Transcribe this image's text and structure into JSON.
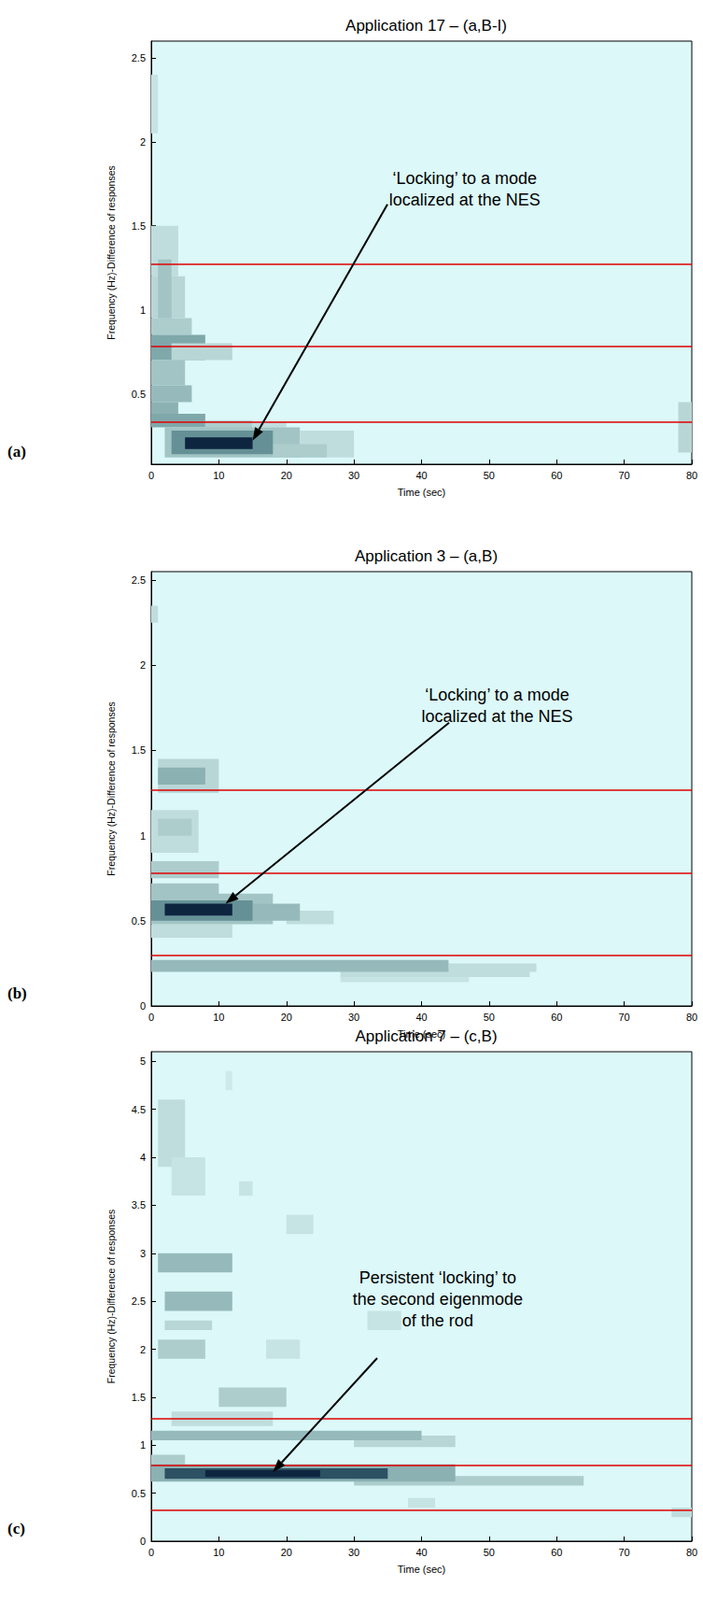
{
  "chart_data": [
    {
      "type": "heatmap",
      "title": "Application 17 – (a,B-I)",
      "panel": "(a)",
      "x_label": "Time (sec)",
      "y_label": "Frequency (Hz)-Difference of responses",
      "xlim": [
        0,
        80
      ],
      "xticks": [
        0,
        10,
        20,
        30,
        40,
        50,
        60,
        70,
        80
      ],
      "ylim": [
        0.08,
        2.6
      ],
      "yticks": [
        0.5,
        1,
        1.5,
        2,
        2.5
      ],
      "grid": false,
      "clim": [
        0,
        1
      ],
      "colorscale": [
        "#dcf8f8",
        "#b9d6d6",
        "#7fa8aa",
        "#3f6f78",
        "#0e2540"
      ],
      "cells": [
        [
          0,
          1,
          2.05,
          2.4,
          0.15
        ],
        [
          0,
          4,
          1.2,
          1.5,
          0.2
        ],
        [
          0,
          5,
          0.95,
          1.2,
          0.25
        ],
        [
          1,
          3,
          0.9,
          1.3,
          0.35
        ],
        [
          0,
          6,
          0.85,
          0.95,
          0.3
        ],
        [
          0,
          8,
          0.7,
          0.85,
          0.5
        ],
        [
          3,
          12,
          0.7,
          0.8,
          0.25
        ],
        [
          0,
          5,
          0.55,
          0.7,
          0.35
        ],
        [
          0,
          6,
          0.45,
          0.55,
          0.4
        ],
        [
          0,
          4,
          0.38,
          0.45,
          0.45
        ],
        [
          0,
          8,
          0.3,
          0.38,
          0.5
        ],
        [
          8,
          15,
          0.28,
          0.34,
          0.3
        ],
        [
          15,
          20,
          0.3,
          0.33,
          0.2
        ],
        [
          2,
          22,
          0.12,
          0.3,
          0.35
        ],
        [
          22,
          30,
          0.12,
          0.28,
          0.2
        ],
        [
          18,
          26,
          0.12,
          0.2,
          0.3
        ],
        [
          3,
          18,
          0.14,
          0.28,
          0.6
        ],
        [
          5,
          15,
          0.17,
          0.24,
          1.0
        ],
        [
          78,
          80,
          0.15,
          0.45,
          0.25
        ]
      ],
      "reference_lines": {
        "values": [
          0.33,
          0.78,
          1.27
        ],
        "color": "#e00000"
      },
      "annotations": [
        {
          "text": [
            "‘Locking’ to a mode",
            "localized at the NES"
          ],
          "x": 15,
          "y": 0.22
        }
      ]
    },
    {
      "type": "heatmap",
      "title": "Application 3 – (a,B)",
      "panel": "(b)",
      "x_label": "Time (sec)",
      "y_label": "Frequency (Hz)-Difference of responses",
      "xlim": [
        0,
        80
      ],
      "xticks": [
        0,
        10,
        20,
        30,
        40,
        50,
        60,
        70,
        80
      ],
      "ylim": [
        0,
        2.55
      ],
      "yticks": [
        0,
        0.5,
        1,
        1.5,
        2,
        2.5
      ],
      "grid": false,
      "clim": [
        0,
        1
      ],
      "colorscale": [
        "#dcf8f8",
        "#b9d6d6",
        "#7fa8aa",
        "#3f6f78",
        "#0e2540"
      ],
      "cells": [
        [
          0,
          1,
          2.25,
          2.35,
          0.2
        ],
        [
          1,
          10,
          1.25,
          1.45,
          0.25
        ],
        [
          1,
          8,
          1.3,
          1.4,
          0.45
        ],
        [
          0,
          7,
          0.9,
          1.15,
          0.2
        ],
        [
          1,
          6,
          1.0,
          1.1,
          0.3
        ],
        [
          0,
          10,
          0.75,
          0.85,
          0.3
        ],
        [
          0,
          10,
          0.62,
          0.72,
          0.35
        ],
        [
          0,
          12,
          0.4,
          0.48,
          0.2
        ],
        [
          0,
          18,
          0.48,
          0.66,
          0.35
        ],
        [
          20,
          27,
          0.48,
          0.56,
          0.2
        ],
        [
          12,
          22,
          0.5,
          0.6,
          0.4
        ],
        [
          0,
          15,
          0.5,
          0.62,
          0.6
        ],
        [
          2,
          12,
          0.53,
          0.6,
          1.0
        ],
        [
          28,
          47,
          0.14,
          0.18,
          0.15
        ],
        [
          28,
          56,
          0.17,
          0.22,
          0.2
        ],
        [
          44,
          57,
          0.2,
          0.25,
          0.2
        ],
        [
          0,
          44,
          0.2,
          0.27,
          0.4
        ]
      ],
      "reference_lines": {
        "values": [
          0.3,
          0.78,
          1.27
        ],
        "color": "#e00000"
      },
      "annotations": [
        {
          "text": [
            "‘Locking’ to a mode",
            "localized at the NES"
          ],
          "x": 11,
          "y": 0.6
        }
      ]
    },
    {
      "type": "heatmap",
      "title": "Application 7 – (c,B)",
      "panel": "(c)",
      "x_label": "Time (sec)",
      "y_label": "Frequency (Hz)-Difference of responses",
      "xlim": [
        0,
        80
      ],
      "xticks": [
        0,
        10,
        20,
        30,
        40,
        50,
        60,
        70,
        80
      ],
      "ylim": [
        0,
        5.1
      ],
      "yticks": [
        0,
        0.5,
        1,
        1.5,
        2,
        2.5,
        3,
        3.5,
        4,
        4.5,
        5
      ],
      "grid": false,
      "clim": [
        0,
        1
      ],
      "colorscale": [
        "#dcf8f8",
        "#b9d6d6",
        "#7fa8aa",
        "#3f6f78",
        "#0e2540"
      ],
      "cells": [
        [
          1,
          5,
          3.9,
          4.6,
          0.2
        ],
        [
          3,
          8,
          3.6,
          4.0,
          0.15
        ],
        [
          11,
          12,
          4.7,
          4.9,
          0.1
        ],
        [
          13,
          15,
          3.6,
          3.75,
          0.15
        ],
        [
          20,
          24,
          3.2,
          3.4,
          0.15
        ],
        [
          1,
          12,
          2.8,
          3.0,
          0.4
        ],
        [
          2,
          12,
          2.4,
          2.6,
          0.4
        ],
        [
          2,
          9,
          2.2,
          2.3,
          0.25
        ],
        [
          32,
          37,
          2.2,
          2.4,
          0.15
        ],
        [
          1,
          8,
          1.9,
          2.1,
          0.3
        ],
        [
          17,
          22,
          1.9,
          2.1,
          0.15
        ],
        [
          10,
          20,
          1.4,
          1.6,
          0.3
        ],
        [
          3,
          18,
          1.2,
          1.35,
          0.2
        ],
        [
          30,
          45,
          0.98,
          1.1,
          0.25
        ],
        [
          0,
          40,
          1.05,
          1.15,
          0.4
        ],
        [
          0,
          5,
          0.7,
          0.9,
          0.3
        ],
        [
          30,
          64,
          0.58,
          0.68,
          0.3
        ],
        [
          0,
          45,
          0.62,
          0.8,
          0.45
        ],
        [
          2,
          35,
          0.65,
          0.76,
          0.85
        ],
        [
          8,
          25,
          0.67,
          0.74,
          1.0
        ],
        [
          38,
          42,
          0.35,
          0.45,
          0.15
        ],
        [
          77,
          80,
          0.25,
          0.35,
          0.2
        ]
      ],
      "reference_lines": {
        "values": [
          0.32,
          0.79,
          1.28
        ],
        "color": "#e00000"
      },
      "annotations": [
        {
          "text": [
            "Persistent ‘locking’ to",
            "the second eigenmode",
            "of the rod"
          ],
          "x": 18,
          "y": 0.72
        }
      ]
    }
  ]
}
